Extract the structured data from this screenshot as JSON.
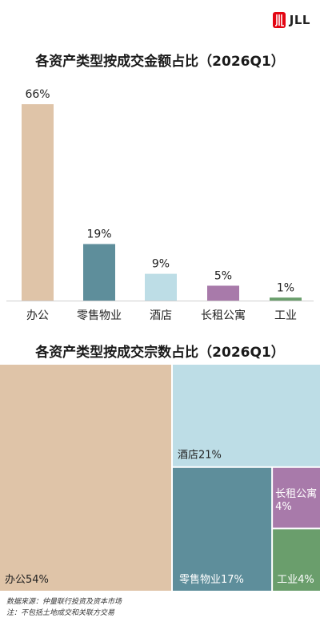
{
  "logo_text": "JLL",
  "colors": {
    "office": "#dfc4a8",
    "retail": "#5e8e9b",
    "hotel": "#bddde6",
    "rental": "#a87aaa",
    "industrial": "#6a9e6c",
    "baseline": "#cfcfcf"
  },
  "chart_data": [
    {
      "type": "bar",
      "title": "各资产类型按成交金额占比（2026Q1）",
      "categories": [
        "办公",
        "零售物业",
        "酒店",
        "长租公寓",
        "工业"
      ],
      "values": [
        66,
        19,
        9,
        5,
        1
      ],
      "data_labels": [
        "66%",
        "19%",
        "9%",
        "5%",
        "1%"
      ],
      "ylim": [
        0,
        66
      ],
      "grid": false
    },
    {
      "type": "treemap",
      "title": "各资产类型按成交宗数占比（2026Q1）",
      "categories": [
        "办公",
        "酒店",
        "零售物业",
        "长租公寓",
        "工业"
      ],
      "values": [
        54,
        21,
        17,
        4,
        4
      ],
      "labels": [
        "办公54%",
        "酒店21%",
        "零售物业17%",
        "长租公寓4%",
        "工业4%"
      ]
    }
  ],
  "footnotes": {
    "source": "数据来源：仲量联行投资及资本市场",
    "note": "注：不包括土地成交和关联方交易"
  }
}
